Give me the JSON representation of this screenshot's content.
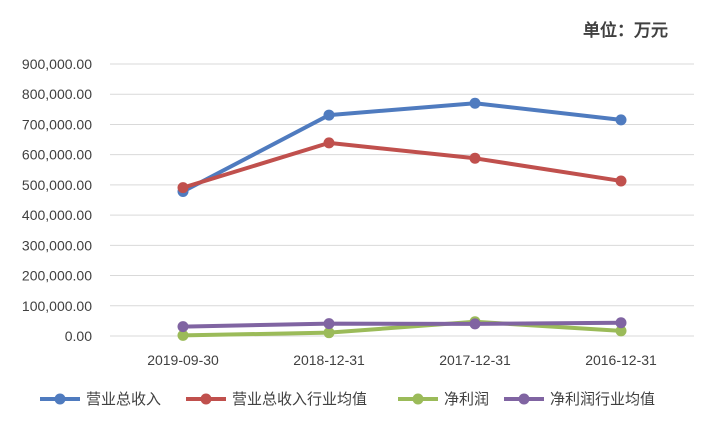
{
  "chart_data": {
    "type": "line",
    "unit_label": "单位：万元",
    "categories": [
      "2019-09-30",
      "2018-12-31",
      "2017-12-31",
      "2016-12-31"
    ],
    "y_ticks": [
      "0.00",
      "100,000.00",
      "200,000.00",
      "300,000.00",
      "400,000.00",
      "500,000.00",
      "600,000.00",
      "700,000.00",
      "800,000.00",
      "900,000.00"
    ],
    "ylim": [
      0,
      900000
    ],
    "grid": true,
    "legend_position": "bottom",
    "series": [
      {
        "name": "营业总收入",
        "color": "#4f7bbf",
        "values": [
          478000,
          731000,
          770000,
          715000
        ]
      },
      {
        "name": "营业总收入行业均值",
        "color": "#c0504d",
        "values": [
          491000,
          639000,
          588000,
          513000
        ]
      },
      {
        "name": "净利润",
        "color": "#9bbb59",
        "values": [
          2000,
          11000,
          47000,
          17000
        ]
      },
      {
        "name": "净利润行业均值",
        "color": "#8064a2",
        "values": [
          31000,
          41000,
          40000,
          44000
        ]
      }
    ]
  }
}
